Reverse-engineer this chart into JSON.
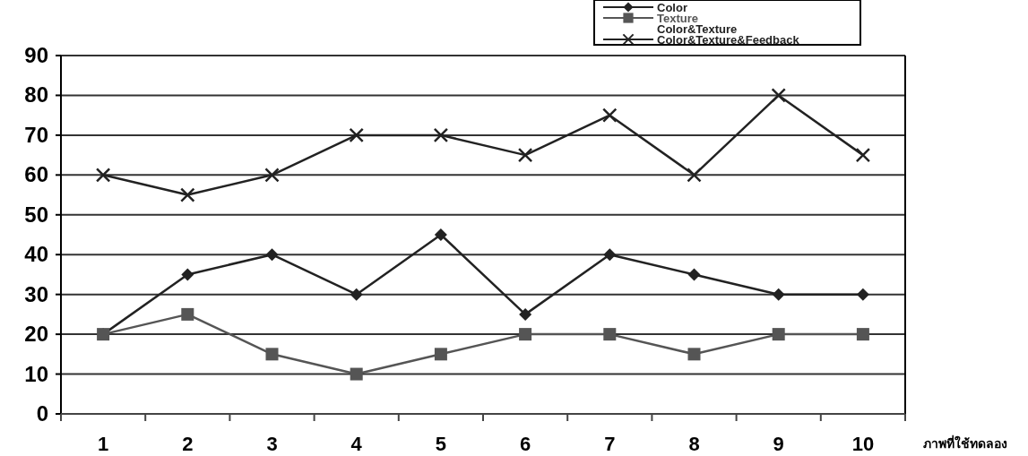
{
  "chart_data": {
    "type": "line",
    "xlabel": "ภาพที่ใช้ทดลอง",
    "categories": [
      "1",
      "2",
      "3",
      "4",
      "5",
      "6",
      "7",
      "8",
      "9",
      "10"
    ],
    "series": [
      {
        "name": "Color",
        "color": "#222222",
        "marker": "diamond",
        "values": [
          20,
          35,
          40,
          30,
          45,
          25,
          40,
          35,
          30,
          30
        ]
      },
      {
        "name": "Texture",
        "color": "#555555",
        "marker": "square",
        "values": [
          20,
          25,
          15,
          10,
          15,
          20,
          20,
          15,
          20,
          20
        ]
      },
      {
        "name": "Color&Texture",
        "color": "#222222",
        "marker": "none",
        "values": [
          null,
          null,
          null,
          null,
          null,
          null,
          null,
          null,
          null,
          null
        ]
      },
      {
        "name": "Color&Texture&Feedback",
        "color": "#222222",
        "marker": "cross",
        "values": [
          60,
          55,
          60,
          70,
          70,
          65,
          75,
          60,
          80,
          65
        ]
      }
    ],
    "ylim": [
      0,
      90
    ],
    "yticks": [
      0,
      10,
      20,
      30,
      40,
      50,
      60,
      70,
      80,
      90
    ],
    "grid": "y",
    "legend": "top right"
  }
}
